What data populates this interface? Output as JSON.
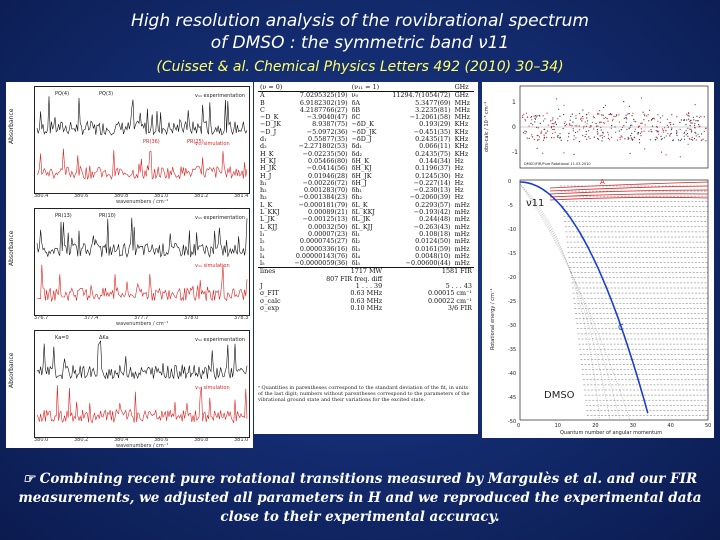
{
  "header": {
    "title_line1": "High resolution analysis of the rovibrational spectrum",
    "title_line2": "of DMSO : the symmetric band ν11",
    "citation": "(Cuisset & al. Chemical Physics Letters 492 (2010) 30–34)"
  },
  "spectra": {
    "panels": [
      {
        "legend_top": "v₁₁ experimentation",
        "legend_bottom": "v₁₁ simulation",
        "ticks": [
          "380.4",
          "380.6",
          "380.8",
          "381.0",
          "381.2",
          "381.4"
        ],
        "xlabel": "wavenumbers / cm⁻¹",
        "ylabel": "Absorbance",
        "tags": [
          "PQ(4)",
          "PQ(3)",
          "PR(36)",
          "PR(25)"
        ]
      },
      {
        "legend_top": "v₁₁ experimentation",
        "legend_bottom": "v₁₁ simulation",
        "ticks": [
          "376.7",
          "377.4",
          "377.7",
          "378.0",
          "378.3"
        ],
        "xlabel": "wavenumbers / cm⁻¹",
        "ylabel": "Absorbance",
        "tags": [
          "PR(13)",
          "PR(10)"
        ]
      },
      {
        "legend_top": "v₁₁ experimentation",
        "legend_bottom": "v₁₁ simulation",
        "ticks": [
          "380.0",
          "380.2",
          "380.4",
          "380.6",
          "380.8",
          "381.0"
        ],
        "xlabel": "wavenumbers / cm⁻¹",
        "ylabel": "Absorbance",
        "tags": [
          "Ka=0",
          "ΔKa"
        ]
      }
    ]
  },
  "table": {
    "header": [
      "(ν = 0)",
      "",
      "(ν₁₁ = 1)",
      ""
    ],
    "unit_col_header": "GHz",
    "rows": [
      [
        "A",
        "7.0295325(19)",
        "ν₀",
        "11294.7(1054(72)",
        "GHz"
      ],
      [
        "B",
        "6.9182302(19)",
        "δA",
        "5.3477(69)",
        "MHz"
      ],
      [
        "C",
        "4.2187766(27)",
        "δB",
        "3.2235(81)",
        "MHz"
      ],
      [
        "−D_K",
        "−3.9040(47)",
        "δC",
        "−1.2061(58)",
        "MHz"
      ],
      [
        "−D_JK",
        "8.9387(75)",
        "−δD_K",
        "0.193(29)",
        "KHz"
      ],
      [
        "−D_J",
        "−5.0972(36)",
        "−δD_JK",
        "−0.451(35)",
        "KHz"
      ],
      [
        "d₁",
        "0.55877(35)",
        "−δD_J",
        "0.2435(17)",
        "KHz"
      ],
      [
        "d₂",
        "−2.271802(53)",
        "δd₁",
        "0.066(11)",
        "KHz"
      ],
      [
        "H_K",
        "−0.02235(50)",
        "δd₂",
        "0.2435(75)",
        "KHz"
      ],
      [
        "H_KJ",
        "0.05466(80)",
        "δH_K",
        "0.144(34)",
        "Hz"
      ],
      [
        "H_JK",
        "−0.0414(56)",
        "δH_KJ",
        "0.1196(37)",
        "Hz"
      ],
      [
        "H_J",
        "0.01946(28)",
        "δH_JK",
        "0.1245(30)",
        "Hz"
      ],
      [
        "h₁",
        "−0.00226(72)",
        "δH_J",
        "−0.227(14)",
        "Hz"
      ],
      [
        "h₂",
        "0.001283(70)",
        "δh₁",
        "−0.230(13)",
        "Hz"
      ],
      [
        "h₃",
        "−0.001384(23)",
        "δh₂",
        "−0.2060(39)",
        "Hz"
      ],
      [
        "L_K",
        "−0.000181(79)",
        "δL_K",
        "0.2293(57)",
        "mHz"
      ],
      [
        "L_KKJ",
        "0.00089(21)",
        "δL_KKJ",
        "−0.193(42)",
        "mHz"
      ],
      [
        "L_JK",
        "−0.00125(13)",
        "δL_JK",
        "0.244(48)",
        "mHz"
      ],
      [
        "L_KJJ",
        "0.00032(50)",
        "δL_KJJ",
        "−0.263(43)",
        "mHz"
      ],
      [
        "l₁",
        "0.00007(23)",
        "δl₁",
        "0.108(18)",
        "mHz"
      ],
      [
        "l₂",
        "0.0000745(27)",
        "δl₂",
        "0.0124(50)",
        "mHz"
      ],
      [
        "l₃",
        "0.0000336(16)",
        "δl₃",
        "0.0161(59)",
        "mHz"
      ],
      [
        "l₄",
        "0.00000143(76)",
        "δl₄",
        "0.0048(10)",
        "mHz"
      ],
      [
        "l₅",
        "−0.0000059(36)",
        "δl₅",
        "−0.00600(44)",
        "mHz"
      ]
    ],
    "summary": [
      [
        "lines",
        "1717 MW",
        "1581 FIR"
      ],
      [
        "",
        "807 FIR freq. diff",
        ""
      ],
      [
        "J",
        "1 . . . 39",
        "5 . . . 43"
      ],
      [
        "σ_FIT",
        "0.63 MHz",
        "0.00015 cm⁻¹"
      ],
      [
        "σ_calc",
        "0.63 MHz",
        "0.00022 cm⁻¹"
      ],
      [
        "σ_exp",
        "0.10 MHz",
        "3/6 FIR"
      ]
    ],
    "footnote": "ᵃ Quantities in parentheses correspond to the standard deviation of the fit, in units of the last digit; numbers without parentheses correspond to the parameters of the vibrational ground state and their variations for the excited state."
  },
  "energy_plot": {
    "ylabel": "Rotational energy / cm⁻¹",
    "xlabel": "Quantum number of angular momentum",
    "resid_ylabel": "obs-calc / 10⁻³ cm⁻¹",
    "band_label": "ν11",
    "curve_a": "A",
    "curve_c": "C",
    "molecule": "DMSO",
    "x_ticks": [
      "0",
      "10",
      "20",
      "30",
      "40",
      "50"
    ],
    "y_ticks": [
      "0",
      "-5",
      "-10",
      "-15",
      "-20",
      "-25",
      "-30",
      "-35",
      "-40",
      "-45",
      "-50"
    ],
    "resid_ticks": [
      "1",
      "0",
      "-1"
    ],
    "resid_note": "DMSO/FIR/Pure Rotational 11-03-2010"
  },
  "footer": {
    "text": "Combining recent  pure rotational transitions measured by Margulès et al. and our FIR measurements,  we adjusted all parameters in H and we reproduced the experimental data close to their experimental accuracy.",
    "icon": "pointing-hand-icon"
  },
  "colors": {
    "accent": "#ffff66",
    "blue_curve": "#1a3fcf",
    "red_curve": "#e02020"
  }
}
